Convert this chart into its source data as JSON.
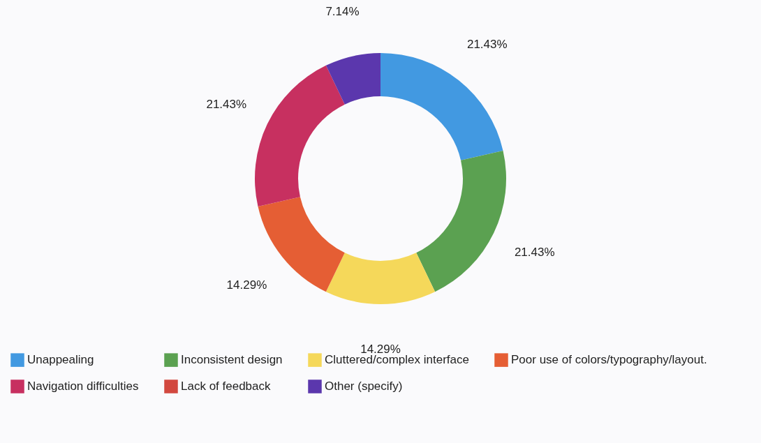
{
  "chart_data": {
    "type": "donut",
    "categories": [
      "Unappealing",
      "Inconsistent design",
      "Cluttered/complex interface",
      "Poor use of colors/typography/layout.",
      "Navigation difficulties",
      "Lack of feedback",
      "Other (specify)"
    ],
    "values": [
      21.43,
      21.43,
      14.29,
      14.29,
      21.43,
      0,
      7.14
    ],
    "colors": [
      "#4299e1",
      "#5ba151",
      "#f5d85a",
      "#e55e34",
      "#c73060",
      "#d2483f",
      "#5b37ad"
    ],
    "value_labels": [
      "21.43%",
      "21.43%",
      "14.29%",
      "14.29%",
      "21.43%",
      null,
      "7.14%"
    ],
    "legend": "bottom"
  }
}
